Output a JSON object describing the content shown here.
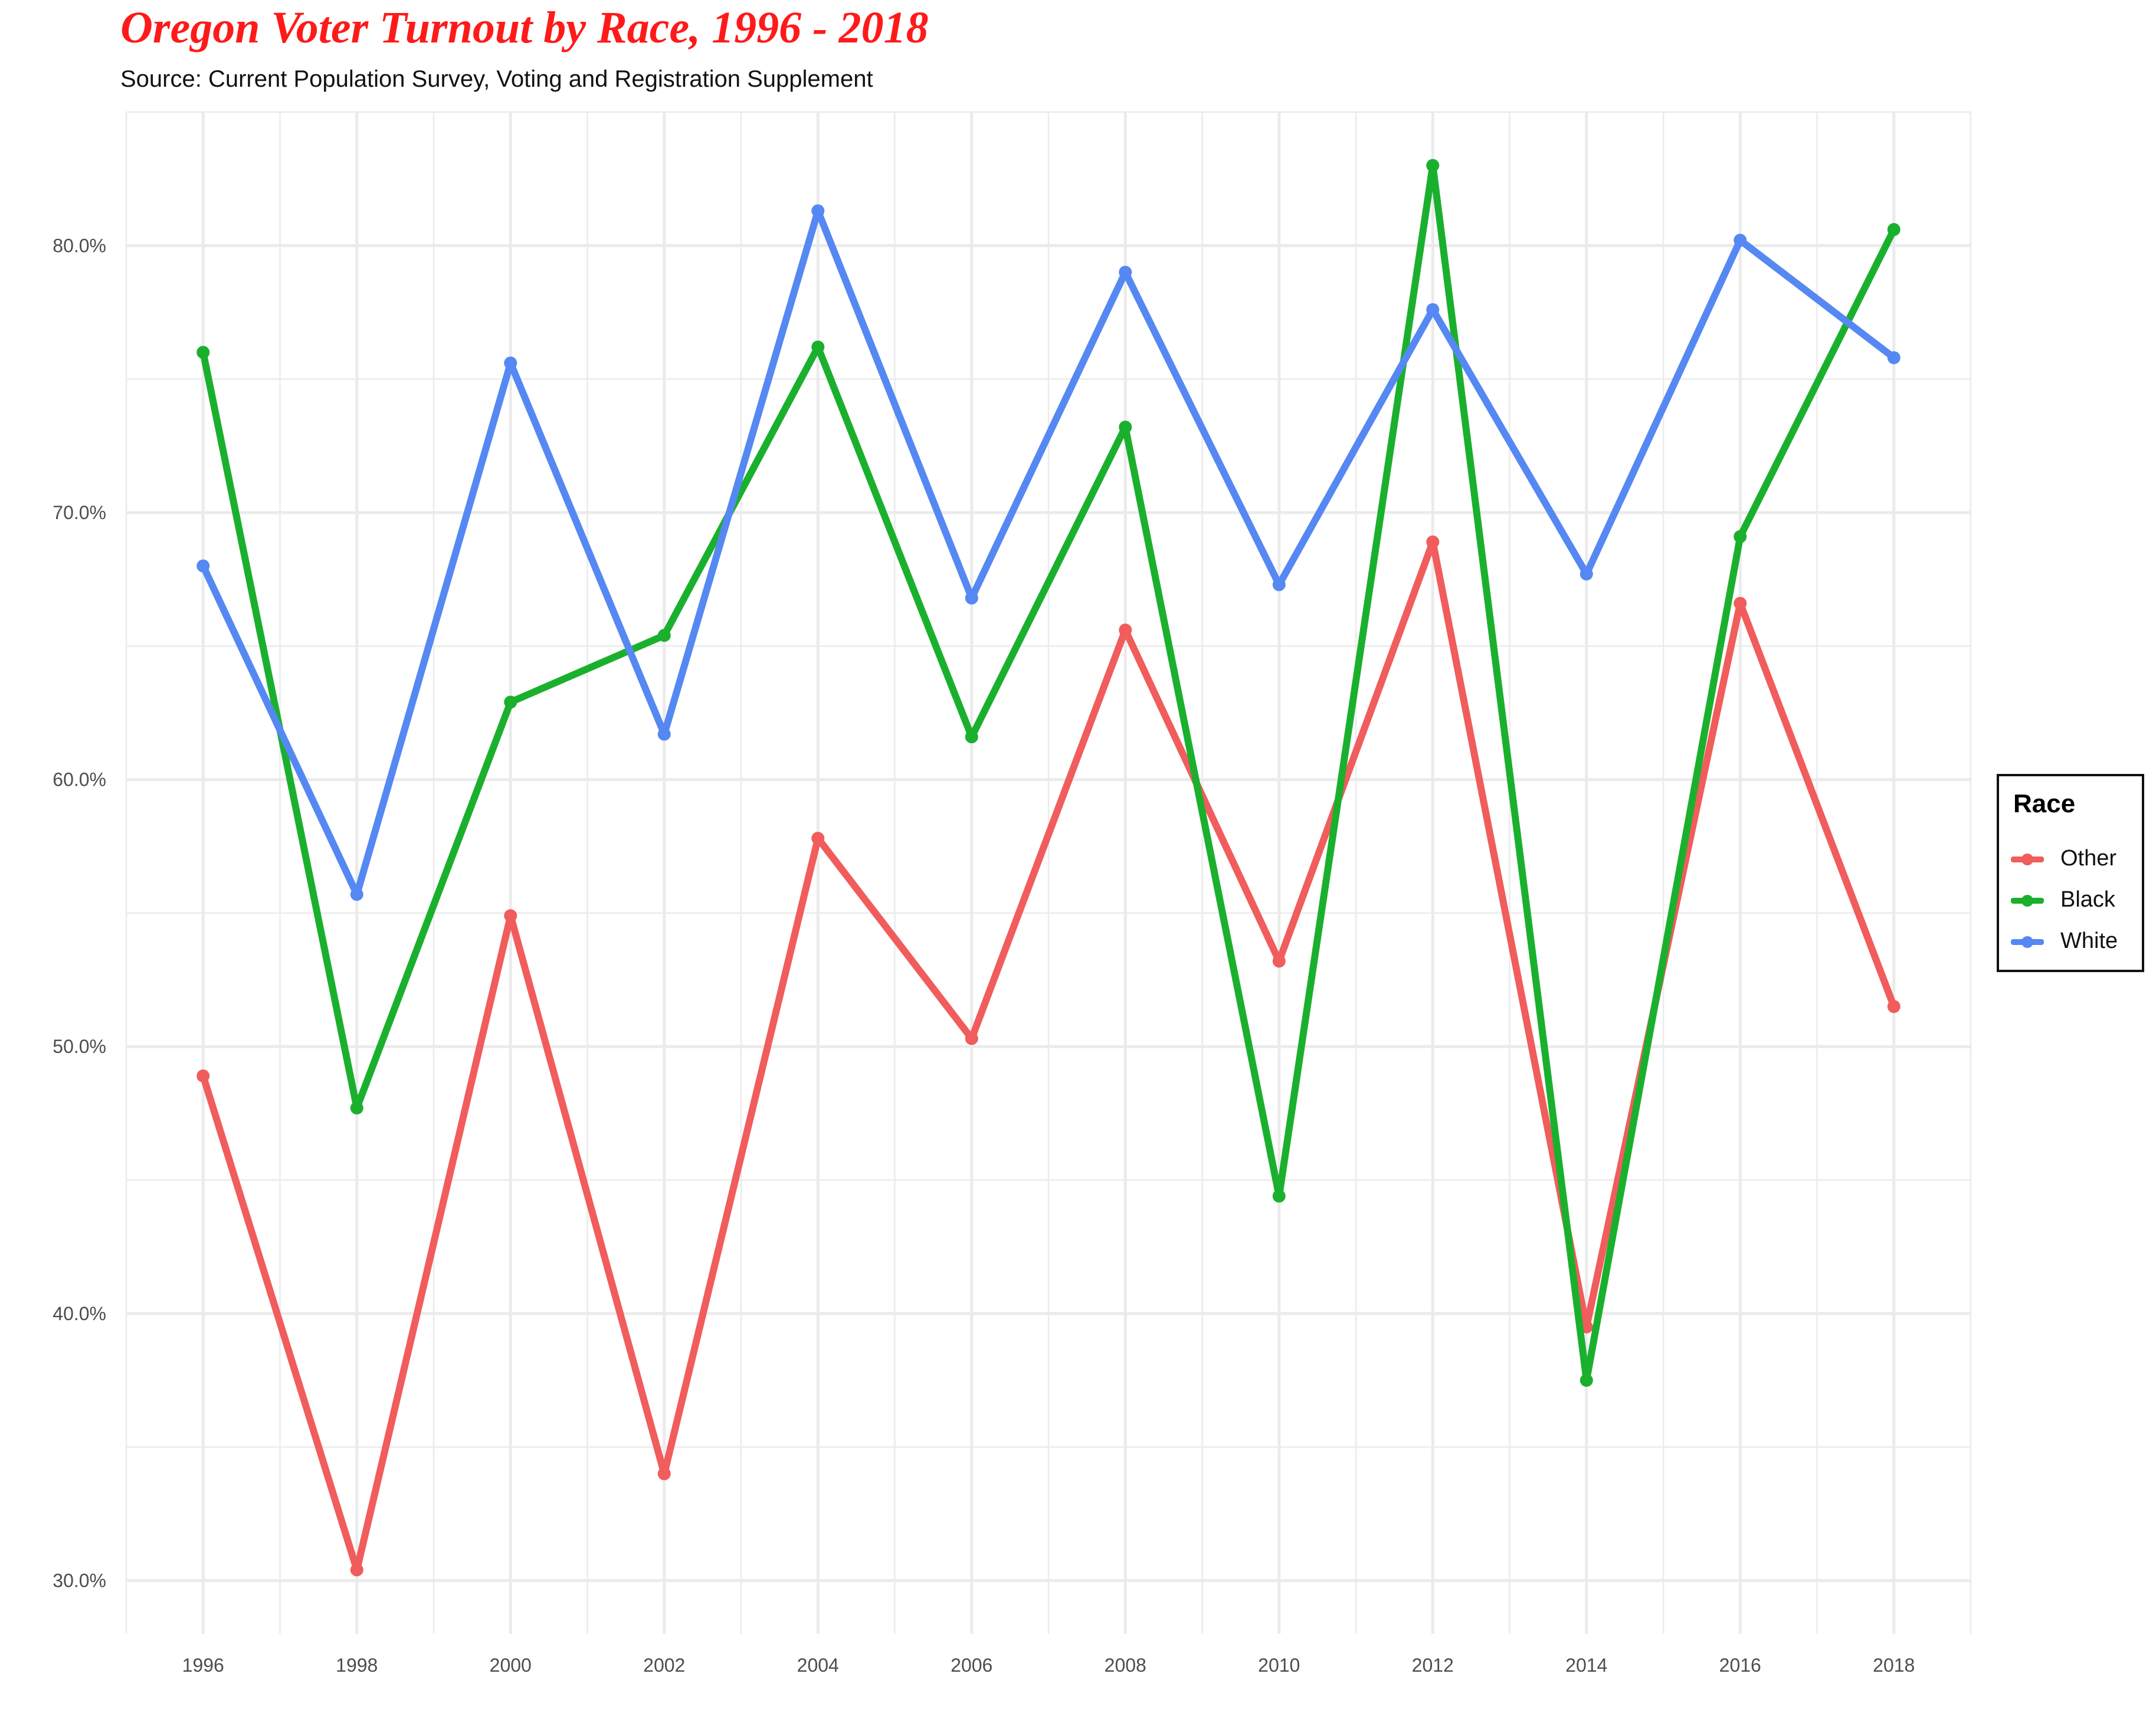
{
  "chart_data": {
    "type": "line",
    "title": "Oregon Voter Turnout by Race, 1996 - 2018",
    "subtitle": "Source: Current Population Survey, Voting and Registration Supplement",
    "xlabel": "",
    "ylabel": "",
    "x": [
      1996,
      1998,
      2000,
      2002,
      2004,
      2006,
      2008,
      2010,
      2012,
      2014,
      2016,
      2018
    ],
    "xlim": [
      1995,
      2019
    ],
    "ylim": [
      28,
      85
    ],
    "x_ticks": [
      "1996",
      "1998",
      "2000",
      "2002",
      "2004",
      "2006",
      "2008",
      "2010",
      "2012",
      "2014",
      "2016",
      "2018"
    ],
    "y_ticks": [
      "30.0%",
      "40.0%",
      "50.0%",
      "60.0%",
      "70.0%",
      "80.0%"
    ],
    "y_tick_values": [
      30,
      40,
      50,
      60,
      70,
      80
    ],
    "grid": true,
    "legend": {
      "title": "Race",
      "placement": "right"
    },
    "series": [
      {
        "name": "Other",
        "color": "#f15c5c",
        "values": [
          48.9,
          30.4,
          54.9,
          34.0,
          57.8,
          50.3,
          65.6,
          53.2,
          68.9,
          39.5,
          66.6,
          51.5
        ]
      },
      {
        "name": "Black",
        "color": "#1ab02e",
        "values": [
          76.0,
          47.7,
          62.9,
          65.4,
          76.2,
          61.6,
          73.2,
          44.4,
          83.0,
          37.5,
          69.1,
          80.6
        ]
      },
      {
        "name": "White",
        "color": "#5588f2",
        "values": [
          68.0,
          55.7,
          75.6,
          61.7,
          81.3,
          66.8,
          79.0,
          67.3,
          77.6,
          67.7,
          80.2,
          75.8
        ]
      }
    ]
  }
}
